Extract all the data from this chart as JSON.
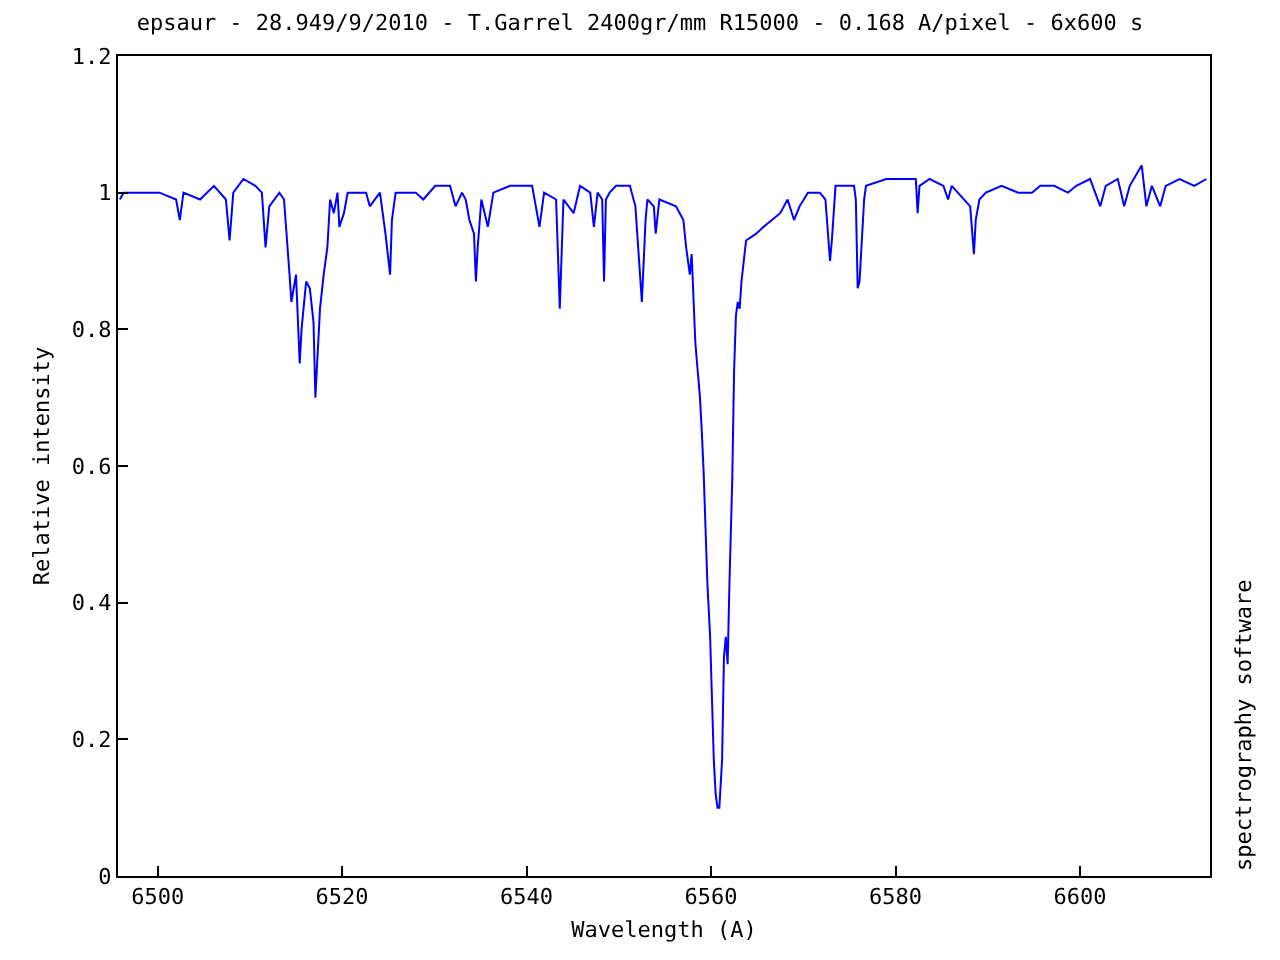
{
  "chart_data": {
    "type": "line",
    "title": "epsaur - 28.949/9/2010 - T.Garrel 2400gr/mm R15000 - 0.168 A/pixel - 6x600 s",
    "xlabel": "Wavelength (A)",
    "ylabel": "Relative intensity",
    "annotations": [
      "spectrography software"
    ],
    "x": [
      6495.9,
      6496.3,
      6498.0,
      6500.2,
      6502.0,
      6502.4,
      6502.8,
      6504.6,
      6506.1,
      6507.4,
      6507.8,
      6508.2,
      6509.3,
      6510.6,
      6511.3,
      6511.7,
      6512.1,
      6513.2,
      6513.7,
      6514.3,
      6514.5,
      6515.0,
      6515.4,
      6515.6,
      6516.1,
      6516.5,
      6516.9,
      6517.1,
      6517.6,
      6518.0,
      6518.4,
      6518.7,
      6519.1,
      6519.5,
      6519.7,
      6520.2,
      6520.6,
      6522.6,
      6523.0,
      6524.1,
      6524.7,
      6525.2,
      6525.4,
      6525.8,
      6528.0,
      6528.8,
      6530.1,
      6531.7,
      6532.3,
      6533.0,
      6533.4,
      6533.8,
      6534.3,
      6534.5,
      6534.7,
      6535.1,
      6535.8,
      6536.4,
      6538.2,
      6540.6,
      6541.4,
      6541.9,
      6543.2,
      6543.6,
      6544.0,
      6545.1,
      6545.8,
      6546.9,
      6547.3,
      6547.7,
      6548.2,
      6548.4,
      6548.6,
      6549.0,
      6549.7,
      6551.2,
      6551.8,
      6552.5,
      6552.9,
      6553.1,
      6553.8,
      6554.0,
      6554.4,
      6556.2,
      6557.0,
      6557.3,
      6557.7,
      6557.9,
      6558.3,
      6558.8,
      6559.0,
      6559.2,
      6559.4,
      6559.6,
      6559.9,
      6560.1,
      6560.3,
      6560.5,
      6560.7,
      6560.9,
      6561.2,
      6561.4,
      6561.6,
      6561.8,
      6562.0,
      6562.3,
      6562.5,
      6562.7,
      6562.9,
      6563.1,
      6563.3,
      6563.8,
      6564.9,
      6565.7,
      6566.6,
      6567.5,
      6568.3,
      6569.0,
      6569.6,
      6570.5,
      6571.8,
      6572.4,
      6572.9,
      6573.1,
      6573.5,
      6575.5,
      6575.7,
      6575.9,
      6576.1,
      6576.6,
      6576.8,
      6579.0,
      6580.7,
      6582.2,
      6582.4,
      6582.6,
      6583.7,
      6585.2,
      6585.7,
      6586.1,
      6588.1,
      6588.5,
      6588.7,
      6589.1,
      6589.8,
      6591.5,
      6593.3,
      6594.8,
      6595.7,
      6597.2,
      6598.7,
      6599.6,
      6601.1,
      6602.2,
      6602.8,
      6604.1,
      6604.8,
      6605.4,
      6606.7,
      6607.2,
      6607.8,
      6608.7,
      6609.3,
      6610.8,
      6612.4,
      6613.7
    ],
    "series": [
      {
        "color": "#0000ff",
        "values": [
          0.99,
          1.0,
          1.0,
          1.0,
          0.99,
          0.96,
          1.0,
          0.99,
          1.01,
          0.99,
          0.93,
          1.0,
          1.02,
          1.01,
          1.0,
          0.92,
          0.98,
          1.0,
          0.99,
          0.88,
          0.84,
          0.88,
          0.75,
          0.8,
          0.87,
          0.86,
          0.81,
          0.7,
          0.83,
          0.88,
          0.92,
          0.99,
          0.97,
          1.0,
          0.95,
          0.97,
          1.0,
          1.0,
          0.98,
          1.0,
          0.94,
          0.88,
          0.96,
          1.0,
          1.0,
          0.99,
          1.01,
          1.01,
          0.98,
          1.0,
          0.99,
          0.96,
          0.94,
          0.87,
          0.92,
          0.99,
          0.95,
          1.0,
          1.01,
          1.01,
          0.95,
          1.0,
          0.99,
          0.83,
          0.99,
          0.97,
          1.01,
          1.0,
          0.95,
          1.0,
          0.99,
          0.87,
          0.99,
          1.0,
          1.01,
          1.01,
          0.98,
          0.84,
          0.96,
          0.99,
          0.98,
          0.94,
          0.99,
          0.98,
          0.96,
          0.92,
          0.88,
          0.91,
          0.78,
          0.7,
          0.65,
          0.59,
          0.51,
          0.43,
          0.35,
          0.26,
          0.17,
          0.12,
          0.1,
          0.1,
          0.17,
          0.32,
          0.35,
          0.31,
          0.43,
          0.58,
          0.74,
          0.82,
          0.84,
          0.83,
          0.87,
          0.93,
          0.94,
          0.95,
          0.96,
          0.97,
          0.99,
          0.96,
          0.98,
          1.0,
          1.0,
          0.99,
          0.9,
          0.93,
          1.01,
          1.01,
          0.99,
          0.86,
          0.87,
          0.99,
          1.01,
          1.02,
          1.02,
          1.02,
          0.97,
          1.01,
          1.02,
          1.01,
          0.99,
          1.01,
          0.98,
          0.91,
          0.96,
          0.99,
          1.0,
          1.01,
          1.0,
          1.0,
          1.01,
          1.01,
          1.0,
          1.01,
          1.02,
          0.98,
          1.01,
          1.02,
          0.98,
          1.01,
          1.04,
          0.98,
          1.01,
          0.98,
          1.01,
          1.02,
          1.01,
          1.02
        ]
      }
    ],
    "xlim": [
      6495.7,
      6614.1
    ],
    "xticks": [
      6500,
      6520,
      6540,
      6560,
      6580,
      6600
    ],
    "ylim": [
      0,
      1.2
    ],
    "yticks": [
      0,
      0.2,
      0.4,
      0.6,
      0.8,
      1,
      1.2
    ],
    "legend": false,
    "marker": "none",
    "line_style": "solid"
  }
}
